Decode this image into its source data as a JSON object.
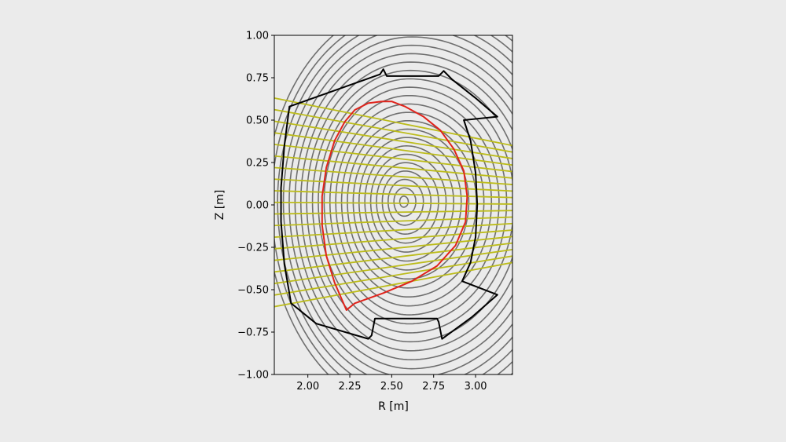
{
  "chart_data": {
    "type": "line",
    "xlabel": "R [m]",
    "ylabel": "Z [m]",
    "xlim": [
      1.8,
      3.22
    ],
    "ylim": [
      -1.0,
      1.0
    ],
    "xticks": [
      "2.00",
      "2.25",
      "2.50",
      "2.75",
      "3.00"
    ],
    "xtick_values": [
      2.0,
      2.25,
      2.5,
      2.75,
      3.0
    ],
    "yticks": [
      "1.00",
      "0.75",
      "0.50",
      "0.25",
      "0.00",
      "−0.25",
      "−0.50",
      "−0.75",
      "−1.00"
    ],
    "ytick_values": [
      1.0,
      0.75,
      0.5,
      0.25,
      0.0,
      -0.25,
      -0.5,
      -0.75,
      -1.0
    ],
    "grid": false,
    "legend": "none",
    "colors": {
      "flux_surfaces": "#6f6f6f",
      "separatrix": "#e0231b",
      "chords": "#bcbc1b",
      "wall": "#000000",
      "background": "#ebebeb"
    },
    "magnetic_axis": [
      2.57,
      0.02
    ],
    "flux_surfaces": {
      "count": 24,
      "min_scale": 0.055,
      "max_scale": 2.05,
      "ro_1": 0.49,
      "ri_1": 0.43,
      "zu_1": 0.57,
      "zl_1": 0.61,
      "shift": 0.03
    },
    "separatrix": [
      [
        2.44,
        0.61
      ],
      [
        2.36,
        0.6
      ],
      [
        2.28,
        0.56
      ],
      [
        2.22,
        0.49
      ],
      [
        2.16,
        0.38
      ],
      [
        2.11,
        0.22
      ],
      [
        2.085,
        0.05
      ],
      [
        2.085,
        -0.12
      ],
      [
        2.11,
        -0.3
      ],
      [
        2.16,
        -0.46
      ],
      [
        2.23,
        -0.62
      ],
      [
        2.28,
        -0.58
      ],
      [
        2.45,
        -0.52
      ],
      [
        2.62,
        -0.45
      ],
      [
        2.77,
        -0.36
      ],
      [
        2.88,
        -0.24
      ],
      [
        2.94,
        -0.1
      ],
      [
        2.95,
        0.05
      ],
      [
        2.93,
        0.2
      ],
      [
        2.87,
        0.33
      ],
      [
        2.79,
        0.44
      ],
      [
        2.69,
        0.52
      ],
      [
        2.58,
        0.58
      ],
      [
        2.5,
        0.61
      ],
      [
        2.44,
        0.61
      ]
    ],
    "chords": {
      "count": 19,
      "x_start": 1.8,
      "x_end": 3.22,
      "y_start_top": 0.63,
      "y_start_bottom": -0.6,
      "y_end_top": 0.35,
      "y_end_bottom": -0.34
    },
    "wall": [
      [
        1.89,
        0.58
      ],
      [
        2.43,
        0.77
      ],
      [
        2.45,
        0.8
      ],
      [
        2.47,
        0.76
      ],
      [
        2.78,
        0.76
      ],
      [
        2.8,
        0.78
      ],
      [
        2.81,
        0.79
      ],
      [
        2.86,
        0.74
      ],
      [
        3.0,
        0.63
      ],
      [
        3.13,
        0.52
      ],
      [
        2.93,
        0.5
      ],
      [
        2.97,
        0.38
      ],
      [
        3.0,
        0.19
      ],
      [
        3.01,
        0.0
      ],
      [
        3.0,
        -0.19
      ],
      [
        2.97,
        -0.34
      ],
      [
        2.92,
        -0.45
      ],
      [
        3.13,
        -0.53
      ],
      [
        2.98,
        -0.66
      ],
      [
        2.8,
        -0.79
      ],
      [
        2.78,
        -0.69
      ],
      [
        2.77,
        -0.67
      ],
      [
        2.4,
        -0.67
      ],
      [
        2.38,
        -0.77
      ],
      [
        2.36,
        -0.79
      ],
      [
        2.05,
        -0.7
      ],
      [
        1.9,
        -0.58
      ],
      [
        1.86,
        -0.35
      ],
      [
        1.84,
        -0.1
      ],
      [
        1.84,
        0.1
      ],
      [
        1.86,
        0.35
      ],
      [
        1.89,
        0.58
      ]
    ]
  }
}
